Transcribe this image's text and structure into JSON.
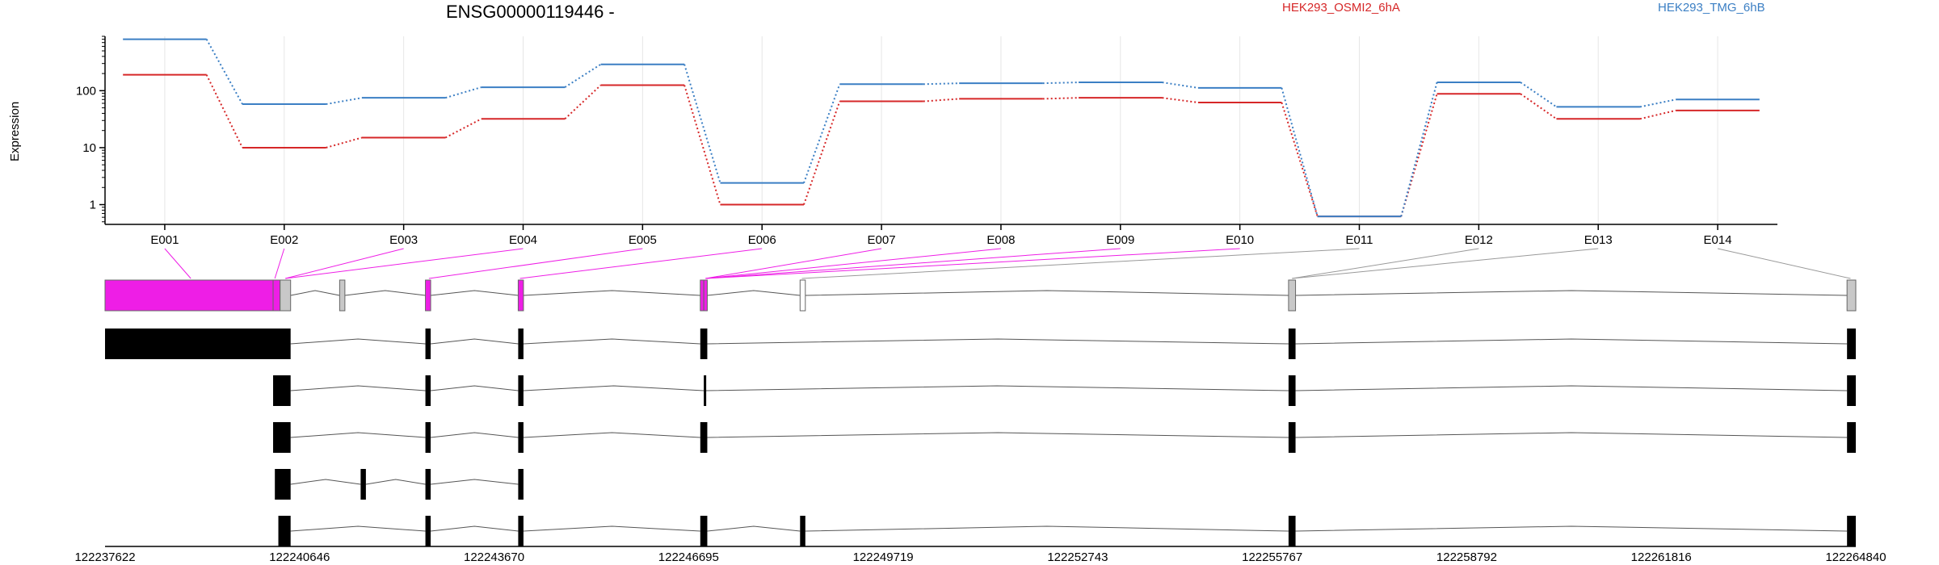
{
  "chart_data": {
    "type": "line",
    "title": "ENSG00000119446 -",
    "ylabel": "Expression",
    "yscale": "log",
    "yticks": [
      1,
      10,
      100
    ],
    "ylim": [
      0.45,
      900
    ],
    "categories": [
      "E001",
      "E002",
      "E003",
      "E004",
      "E005",
      "E006",
      "E007",
      "E008",
      "E009",
      "E010",
      "E011",
      "E012",
      "E013",
      "E014"
    ],
    "series": [
      {
        "name": "HEK293_OSMI2_6hA",
        "color": "#d62728",
        "values": [
          190,
          10,
          15,
          32,
          125,
          1.0,
          65,
          72,
          75,
          62,
          0.62,
          88,
          32,
          45
        ]
      },
      {
        "name": "HEK293_TMG_6hB",
        "color": "#3b7fc4",
        "values": [
          800,
          58,
          75,
          115,
          290,
          2.4,
          130,
          135,
          140,
          112,
          0.62,
          140,
          52,
          70
        ]
      }
    ],
    "exon_colors": {
      "significant": "#ee1ee6",
      "grey": "#c8c8c8",
      "open": "#ffffff",
      "transcript": "#000000"
    },
    "genomic_axis": {
      "range": [
        122237622,
        122264840
      ],
      "ticks": [
        "122237622",
        "122240646",
        "122243670",
        "122246695",
        "122249719",
        "122252743",
        "122255767",
        "122258792",
        "122261816",
        "122264840"
      ]
    }
  }
}
